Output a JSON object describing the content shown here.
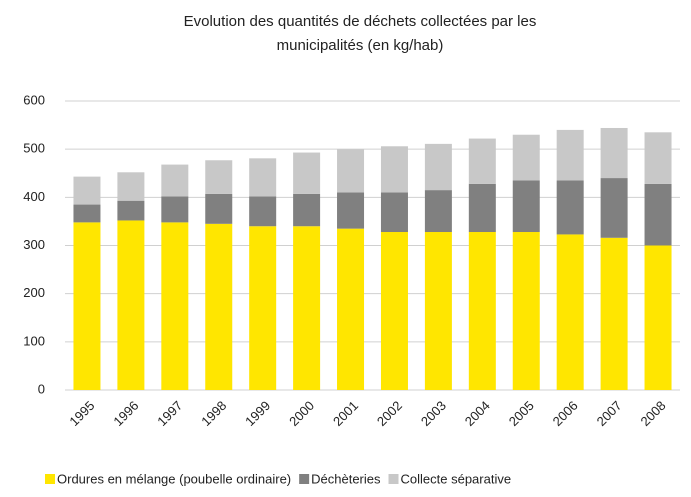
{
  "chart_data": {
    "type": "stacked_bar",
    "title": [
      "Evolution des quantités de déchets collectées par les",
      "municipalités (en kg/hab)"
    ],
    "categories": [
      "1995",
      "1996",
      "1997",
      "1998",
      "1999",
      "2000",
      "2001",
      "2002",
      "2003",
      "2004",
      "2005",
      "2006",
      "2007",
      "2008"
    ],
    "series": [
      {
        "name": "Ordures en mélange (poubelle ordinaire)",
        "color": "#ffe600",
        "values": [
          348,
          352,
          348,
          345,
          340,
          340,
          335,
          328,
          328,
          328,
          328,
          323,
          316,
          300
        ]
      },
      {
        "name": "Déchèteries",
        "color": "#808080",
        "values": [
          37,
          41,
          54,
          62,
          62,
          67,
          75,
          82,
          87,
          100,
          107,
          112,
          124,
          128
        ]
      },
      {
        "name": "Collecte séparative",
        "color": "#c8c8c8",
        "values": [
          58,
          59,
          66,
          70,
          79,
          86,
          90,
          96,
          96,
          94,
          95,
          105,
          104,
          107
        ]
      }
    ],
    "ylim": [
      0,
      600
    ],
    "yticks": [
      0,
      100,
      200,
      300,
      400,
      500,
      600
    ],
    "grid": true
  }
}
